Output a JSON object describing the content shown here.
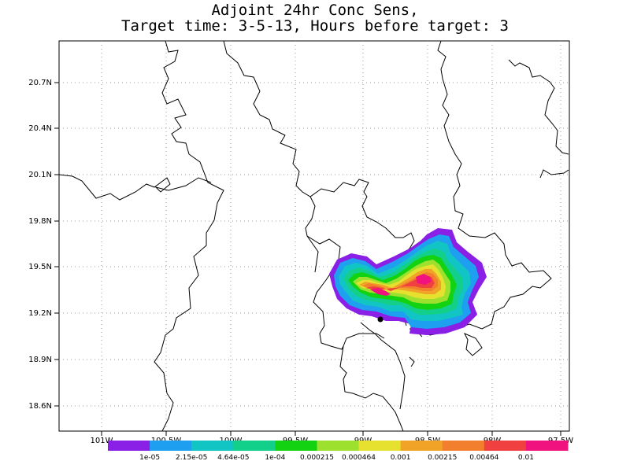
{
  "title": {
    "line1": "Adjoint 24hr Conc Sens,",
    "line2": "Target time: 3-5-13, Hours before target: 3"
  },
  "axes": {
    "lat_labels": [
      "20.7N",
      "20.4N",
      "20.1N",
      "19.8N",
      "19.5N",
      "19.2N",
      "18.9N",
      "18.6N"
    ],
    "lon_labels": [
      "101W",
      "100.5W",
      "100W",
      "99.5W",
      "99W",
      "98.5W",
      "98W",
      "97.5W"
    ]
  },
  "colorbar": {
    "colors": [
      "#8a1fe6",
      "#1f9ff0",
      "#12c5c5",
      "#12d08a",
      "#12d212",
      "#9ee02e",
      "#e6e02e",
      "#f0a326",
      "#f27f2e",
      "#f04040",
      "#f0127f"
    ],
    "labels": [
      "1e-05",
      "2.15e-05",
      "4.64e-05",
      "1e-04",
      "0.000215",
      "0.000464",
      "0.001",
      "0.00215",
      "0.00464",
      "0.01"
    ]
  }
}
